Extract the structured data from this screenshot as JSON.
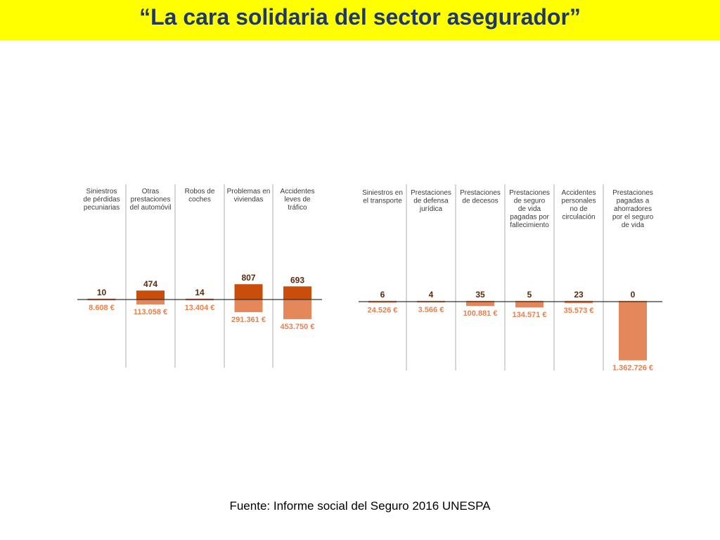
{
  "slide": {
    "title": "“La cara solidaria del sector asegurador”",
    "source": "Fuente: Informe social del Seguro 2016 UNESPA"
  },
  "colors": {
    "title_bar": "#ffff00",
    "title_text": "#1f3864",
    "dark_bar": "#c94e0c",
    "light_bar": "#e4875a",
    "amount_label": "#e8804c",
    "separator": "#c8c8c8",
    "baseline": "#333333",
    "category_text": "#3a3a3a"
  },
  "chart_data": [
    {
      "type": "bar",
      "categories": [
        [
          "Siniestros",
          "de pérdidas",
          "pecuniarias"
        ],
        [
          "Otras",
          "prestaciones",
          "del automóvil"
        ],
        [
          "Robos de",
          "coches"
        ],
        [
          "Problemas en",
          "viviendas"
        ],
        [
          "Accidentes",
          "leves de",
          "tráfico"
        ]
      ],
      "series": [
        {
          "values": [
            10,
            474,
            14,
            807,
            693
          ],
          "labels": [
            "10",
            "474",
            "14",
            "807",
            "693"
          ]
        },
        {
          "values": [
            8608,
            113058,
            13404,
            291361,
            453750
          ],
          "labels": [
            "8.608 €",
            "113.058 €",
            "13.404 €",
            "291.361 €",
            "453.750 €"
          ]
        }
      ]
    },
    {
      "type": "bar",
      "categories": [
        [
          "Siniestros en",
          "el transporte"
        ],
        [
          "Prestaciones",
          "de defensa",
          "jurídica"
        ],
        [
          "Prestaciones",
          "de decesos"
        ],
        [
          "Prestaciones",
          "de seguro",
          "de vida",
          "pagadas por",
          "fallecimiento"
        ],
        [
          "Accidentes",
          "personales",
          "no de",
          "circulación"
        ],
        [
          "Prestaciones",
          "pagadas a",
          "ahorradores",
          "por el seguro",
          "de vida"
        ]
      ],
      "series": [
        {
          "values": [
            6,
            4,
            35,
            5,
            23,
            0
          ],
          "labels": [
            "6",
            "4",
            "35",
            "5",
            "23",
            "0"
          ]
        },
        {
          "values": [
            24526,
            3566,
            100881,
            134571,
            35573,
            1362726
          ],
          "labels": [
            "24.526 €",
            "3.566 €",
            "100.881 €",
            "134.571 €",
            "35.573 €",
            "1.362.726 €"
          ]
        }
      ]
    }
  ]
}
